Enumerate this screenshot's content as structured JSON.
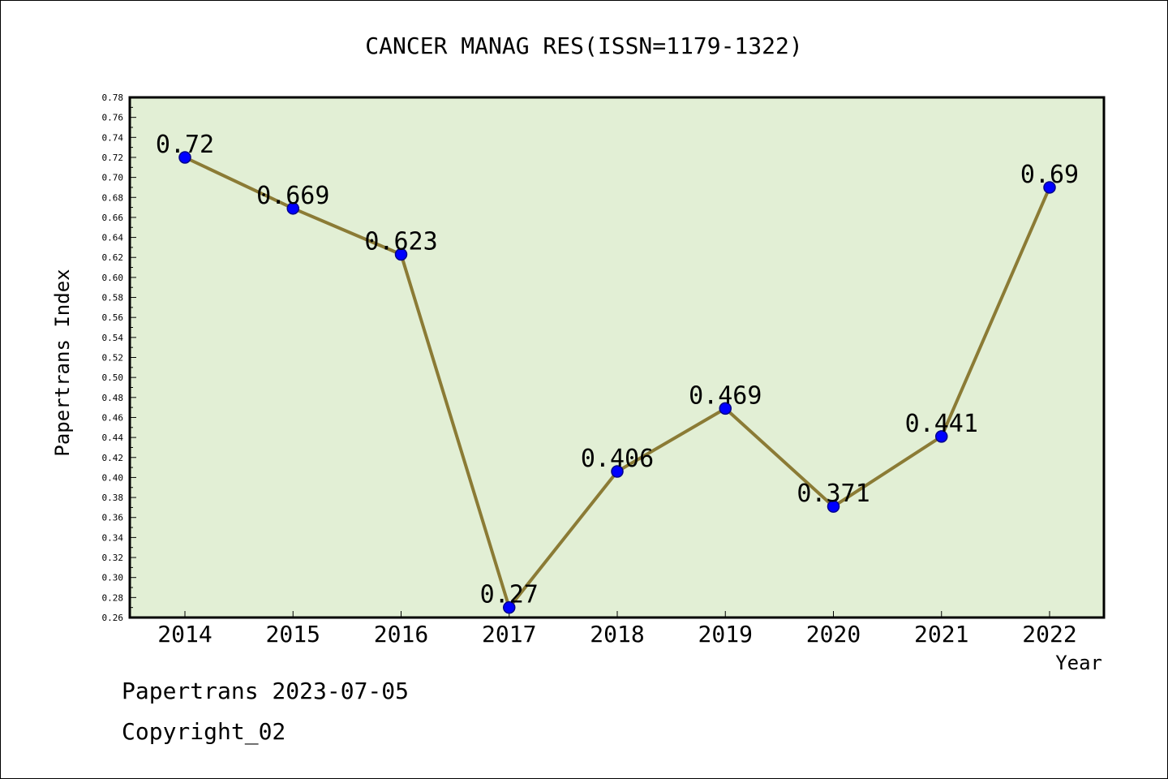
{
  "chart_data": {
    "type": "line",
    "title": "CANCER MANAG RES(ISSN=1179-1322)",
    "xlabel": "Year",
    "ylabel": "Papertrans Index",
    "x": [
      "2014",
      "2015",
      "2016",
      "2017",
      "2018",
      "2019",
      "2020",
      "2021",
      "2022"
    ],
    "values": [
      0.72,
      0.669,
      0.623,
      0.27,
      0.406,
      0.469,
      0.371,
      0.441,
      0.69
    ],
    "data_labels": [
      "0.72",
      "0.669",
      "0.623",
      "0.27",
      "0.406",
      "0.469",
      "0.371",
      "0.441",
      "0.69"
    ],
    "ylim": [
      0.26,
      0.78
    ],
    "ytick_labels": [
      "0.26",
      "0.28",
      "0.30",
      "0.32",
      "0.34",
      "0.36",
      "0.38",
      "0.40",
      "0.42",
      "0.44",
      "0.46",
      "0.48",
      "0.50",
      "0.52",
      "0.54",
      "0.56",
      "0.58",
      "0.60",
      "0.62",
      "0.64",
      "0.66",
      "0.68",
      "0.70",
      "0.72",
      "0.74",
      "0.76",
      "0.78"
    ],
    "grid": false,
    "colors": {
      "plot_background": "#e2efd5",
      "line": "#8b7b35",
      "marker": "#0000ff",
      "marker_edge": "#00008b"
    }
  },
  "footer": {
    "line1": "Papertrans 2023-07-05",
    "line2": "Copyright_02"
  }
}
